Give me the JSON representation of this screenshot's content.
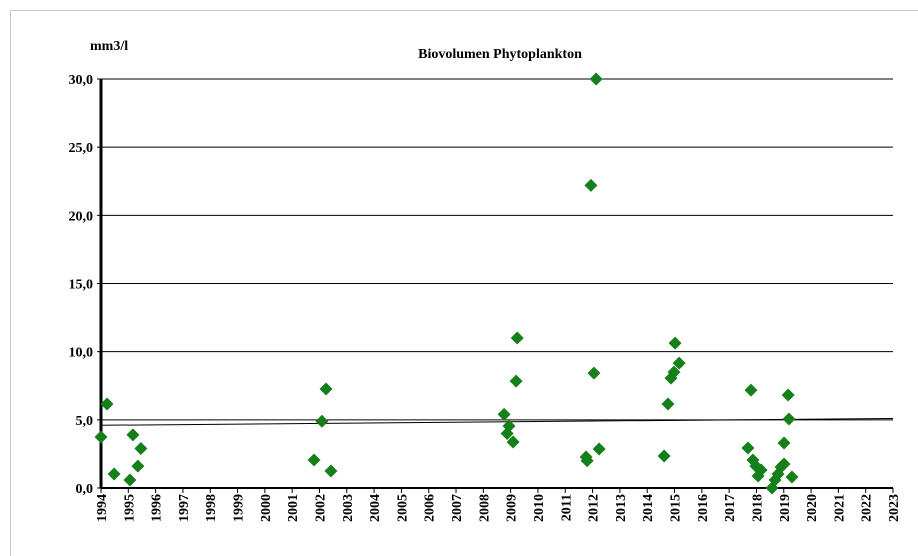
{
  "chart_data": {
    "type": "scatter",
    "title": "Biovolumen Phytoplankton",
    "y_label": "mm3/l",
    "color": "#15801a",
    "grid": true,
    "xlim": [
      1994,
      2023
    ],
    "xticks": [
      1994,
      1995,
      1996,
      1997,
      1998,
      1999,
      2000,
      2001,
      2002,
      2003,
      2004,
      2005,
      2006,
      2007,
      2008,
      2009,
      2010,
      2011,
      2012,
      2013,
      2014,
      2015,
      2016,
      2017,
      2018,
      2019,
      2020,
      2021,
      2022,
      2023
    ],
    "ylim": [
      0,
      30
    ],
    "yticks": [
      {
        "value": 0,
        "label": "0,0"
      },
      {
        "value": 5,
        "label": "5,0"
      },
      {
        "value": 10,
        "label": "10,0"
      },
      {
        "value": 15,
        "label": "15,0"
      },
      {
        "value": 20,
        "label": "20,0"
      },
      {
        "value": 25,
        "label": "25,0"
      },
      {
        "value": 30,
        "label": "30,0"
      }
    ],
    "x": [
      1994.0,
      1994.22,
      1994.48,
      1995.06,
      1995.17,
      1995.35,
      1995.46,
      2001.8,
      2002.09,
      2002.24,
      2002.42,
      2008.76,
      2008.87,
      2008.94,
      2009.09,
      2009.2,
      2009.24,
      2011.76,
      2011.8,
      2011.94,
      2012.05,
      2012.13,
      2012.24,
      2014.62,
      2014.76,
      2014.87,
      2014.98,
      2015.02,
      2015.17,
      2017.69,
      2017.8,
      2017.87,
      2017.98,
      2018.06,
      2018.17,
      2018.57,
      2018.68,
      2018.79,
      2018.9,
      2019.01,
      2019.01,
      2019.16,
      2019.19,
      2019.3
    ],
    "values": [
      3.74,
      6.16,
      1.03,
      0.59,
      3.9,
      1.6,
      2.9,
      2.05,
      4.9,
      7.26,
      1.25,
      5.4,
      4.0,
      4.55,
      3.37,
      7.84,
      11.0,
      2.27,
      2.0,
      22.2,
      8.43,
      30.0,
      2.86,
      2.35,
      6.16,
      8.06,
      8.5,
      10.63,
      9.16,
      2.93,
      7.18,
      2.05,
      1.6,
      0.88,
      1.32,
      0.0,
      0.59,
      1.03,
      1.54,
      3.3,
      1.76,
      6.82,
      5.06,
      0.81
    ],
    "trendline": {
      "x": [
        1994,
        2023
      ],
      "values": [
        4.6,
        5.1
      ]
    }
  }
}
